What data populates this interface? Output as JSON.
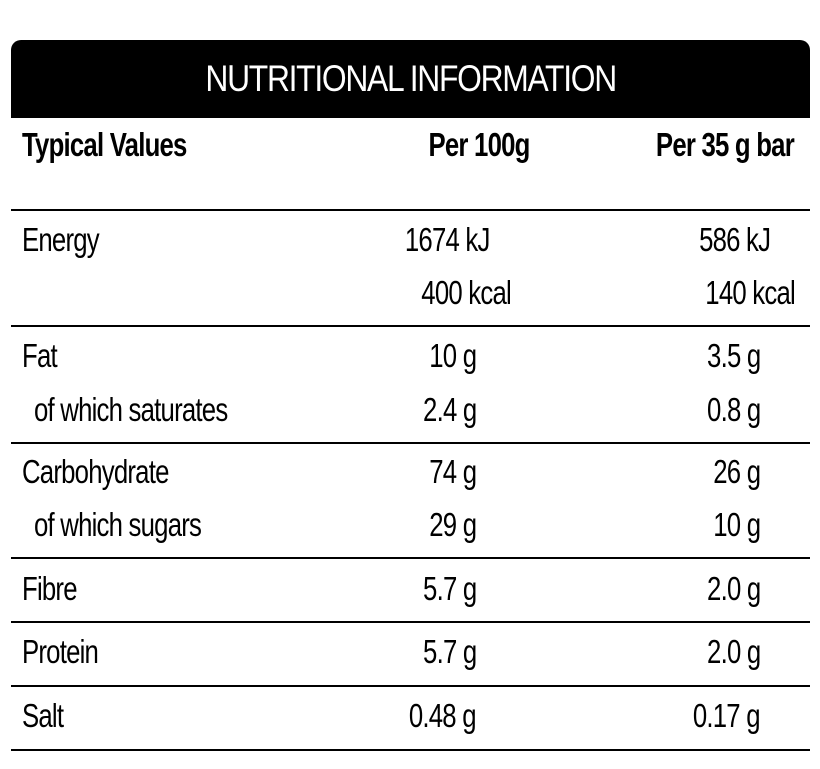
{
  "title": "NUTRITIONAL INFORMATION",
  "headers": {
    "label": "Typical Values",
    "col1": "Per 100g",
    "col2": "Per 35 g bar"
  },
  "rows": {
    "energy": {
      "label": "Energy",
      "per100_kj": "1674 kJ",
      "per100_kcal": "400 kcal",
      "bar_kj": "586 kJ",
      "bar_kcal": "140 kcal"
    },
    "fat": {
      "label": "Fat",
      "per100": "10 g",
      "bar": "3.5 g"
    },
    "saturates": {
      "label": "of which saturates",
      "per100": "2.4 g",
      "bar": "0.8 g"
    },
    "carbohydrate": {
      "label": "Carbohydrate",
      "per100": "74 g",
      "bar": "26 g"
    },
    "sugars": {
      "label": "of which sugars",
      "per100": "29 g",
      "bar": "10 g"
    },
    "fibre": {
      "label": "Fibre",
      "per100": "5.7 g",
      "bar": "2.0 g"
    },
    "protein": {
      "label": "Protein",
      "per100": "5.7 g",
      "bar": "2.0 g"
    },
    "salt": {
      "label": "Salt",
      "per100": "0.48 g",
      "bar": "0.17 g"
    }
  }
}
